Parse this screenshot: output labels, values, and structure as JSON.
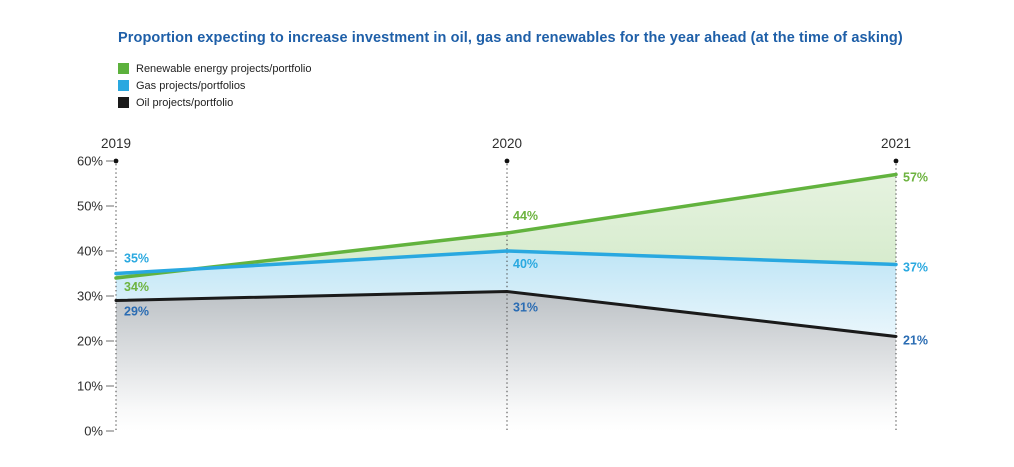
{
  "title": "Proportion expecting to increase investment in oil, gas and renewables for the year ahead (at the time of asking)",
  "title_color": "#1e5fa8",
  "legend": {
    "items": [
      {
        "label": "Renewable energy projects/portfolio",
        "color": "#5cb13c"
      },
      {
        "label": "Gas projects/portfolios",
        "color": "#29a8e0"
      },
      {
        "label": "Oil projects/portfolio",
        "color": "#1a1a1a"
      }
    ]
  },
  "chart_data": {
    "type": "area",
    "categories": [
      "2019",
      "2020",
      "2021"
    ],
    "series": [
      {
        "name": "Renewable energy projects/portfolio",
        "values": [
          34,
          44,
          57
        ],
        "color": "#62b33e",
        "label_color": "#6db33f"
      },
      {
        "name": "Gas projects/portfolios",
        "values": [
          35,
          40,
          37
        ],
        "color": "#29a8e0",
        "label_color": "#2aa9e0"
      },
      {
        "name": "Oil projects/portfolio",
        "values": [
          29,
          31,
          21
        ],
        "color": "#1a1a1a",
        "label_color": "#2a6cb3"
      }
    ],
    "point_label_suffix": "%",
    "y_ticks": [
      "60%",
      "50%",
      "40%",
      "30%",
      "20%",
      "10%",
      "0%"
    ],
    "y_tick_values": [
      60,
      50,
      40,
      30,
      20,
      10,
      0
    ],
    "ylim": [
      0,
      60
    ],
    "grid": "dotted-vertical-per-year",
    "legend_position": "top-left",
    "axis_text_color": "#2e2e2e",
    "guide_line_color": "#555555",
    "tick_mark_color": "#8f8f8f"
  }
}
